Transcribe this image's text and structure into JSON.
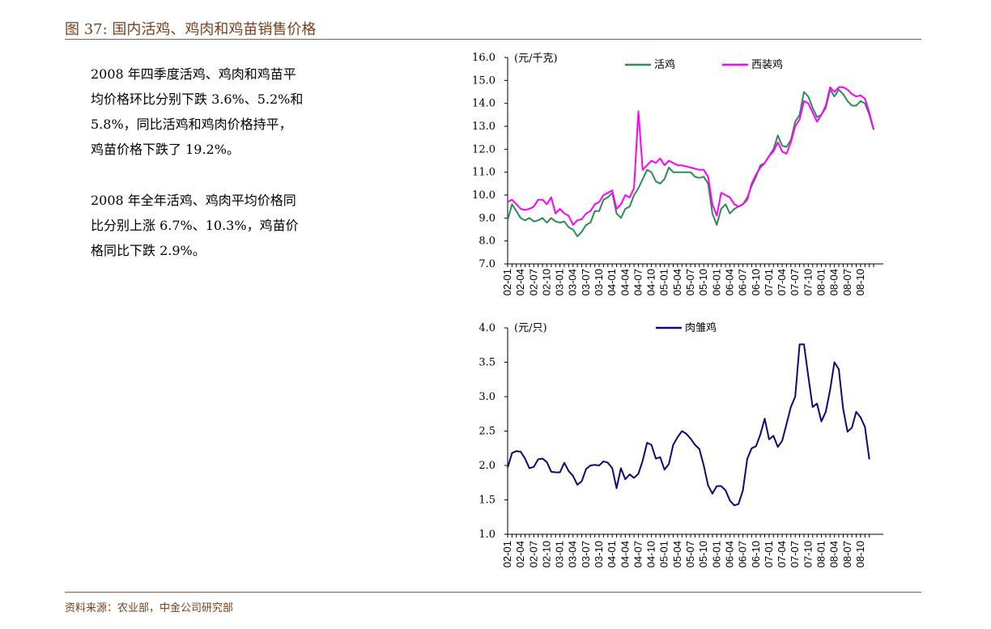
{
  "figure": {
    "title": "图 37: 国内活鸡、鸡肉和鸡苗销售价格",
    "source": "资料来源：农业部，中金公司研究部"
  },
  "text": {
    "paragraph1": [
      "2008 年四季度活鸡、鸡肉和鸡苗平",
      "均价格环比分别下跌 3.6%、5.2%和",
      "5.8%，同比活鸡和鸡肉价格持平，",
      "鸡苗价格下跌了 19.2%。"
    ],
    "paragraph2": [
      "2008 年全年活鸡、鸡肉平均价格同",
      "比分别上涨 6.7%、10.3%，鸡苗价",
      "格同比下跌 2.9%。"
    ]
  },
  "colors": {
    "title": "#7b3f1a",
    "rule": "#9a5a32",
    "live_chicken": "#2e8b57",
    "western_chicken": "#ff00ff",
    "chick": "#0a0a78"
  },
  "chart_data": [
    {
      "type": "line",
      "unit_label": "(元/千克)",
      "ylim": [
        7.0,
        16.0
      ],
      "yticks": [
        "16.0",
        "15.0",
        "14.0",
        "13.0",
        "12.0",
        "11.0",
        "10.0",
        "9.0",
        "8.0",
        "7.0"
      ],
      "x_tick_labels": [
        "02-01",
        "02-04",
        "02-07",
        "02-10",
        "03-01",
        "03-04",
        "03-07",
        "03-10",
        "04-01",
        "04-04",
        "04-07",
        "04-10",
        "05-01",
        "05-04",
        "05-07",
        "05-10",
        "06-01",
        "06-04",
        "06-07",
        "06-10",
        "07-01",
        "07-04",
        "07-07",
        "07-10",
        "08-01",
        "08-04",
        "08-07",
        "08-10"
      ],
      "x_start": "2002-01",
      "legend_position": "top",
      "series": [
        {
          "name": "活鸡",
          "color_key": "live_chicken",
          "values": [
            8.9,
            9.6,
            9.3,
            9.0,
            8.9,
            9.0,
            8.85,
            8.9,
            9.0,
            8.8,
            9.0,
            8.85,
            8.8,
            8.85,
            8.6,
            8.5,
            8.2,
            8.4,
            8.7,
            8.8,
            9.3,
            9.3,
            9.8,
            9.9,
            10.1,
            9.2,
            9.0,
            9.4,
            9.5,
            10.0,
            10.3,
            10.7,
            11.1,
            11.0,
            10.6,
            10.5,
            10.7,
            11.2,
            11.0,
            11.0,
            11.0,
            11.0,
            11.0,
            10.8,
            10.75,
            10.8,
            10.5,
            9.2,
            8.7,
            9.4,
            9.6,
            9.2,
            9.4,
            9.5,
            9.6,
            9.9,
            10.4,
            10.8,
            11.3,
            11.4,
            11.7,
            12.0,
            12.6,
            12.15,
            12.1,
            12.4,
            13.2,
            13.5,
            14.5,
            14.3,
            13.8,
            13.4,
            13.5,
            13.8,
            14.6,
            14.3,
            14.6,
            14.4,
            14.1,
            13.9,
            13.9,
            14.1,
            14.0,
            13.5,
            12.85
          ]
        },
        {
          "name": "西装鸡",
          "color_key": "western_chicken",
          "values": [
            9.7,
            9.8,
            9.6,
            9.4,
            9.35,
            9.4,
            9.5,
            9.8,
            9.8,
            9.6,
            9.9,
            9.2,
            9.4,
            9.2,
            9.1,
            8.7,
            8.9,
            8.95,
            9.2,
            9.3,
            9.6,
            9.7,
            10.0,
            10.1,
            10.2,
            9.4,
            9.6,
            10.0,
            9.9,
            10.3,
            13.65,
            11.1,
            11.3,
            11.5,
            11.4,
            11.6,
            11.3,
            11.5,
            11.4,
            11.3,
            11.3,
            11.25,
            11.2,
            11.15,
            11.1,
            11.1,
            10.8,
            9.6,
            9.1,
            10.1,
            10.0,
            9.9,
            9.6,
            9.5,
            9.6,
            9.8,
            10.5,
            10.9,
            11.2,
            11.4,
            11.7,
            11.9,
            12.3,
            11.9,
            11.8,
            12.3,
            13.0,
            13.3,
            14.1,
            14.0,
            13.6,
            13.2,
            13.5,
            13.9,
            14.7,
            14.5,
            14.7,
            14.7,
            14.6,
            14.4,
            14.3,
            14.35,
            14.2,
            13.6,
            12.85
          ]
        }
      ]
    },
    {
      "type": "line",
      "unit_label": "(元/只)",
      "ylim": [
        1.0,
        4.0
      ],
      "yticks": [
        "4.0",
        "3.5",
        "3.0",
        "2.5",
        "2.0",
        "1.5",
        "1.0"
      ],
      "x_tick_labels": [
        "02-01",
        "02-04",
        "02-07",
        "02-10",
        "03-01",
        "03-04",
        "03-07",
        "03-10",
        "04-01",
        "04-04",
        "04-07",
        "04-10",
        "05-01",
        "05-04",
        "05-07",
        "05-10",
        "06-01",
        "06-04",
        "06-07",
        "06-10",
        "07-01",
        "07-04",
        "07-07",
        "07-10",
        "08-01",
        "08-04",
        "08-07",
        "08-10"
      ],
      "x_start": "2002-01",
      "legend_position": "top",
      "series": [
        {
          "name": "肉雏鸡",
          "color_key": "chick",
          "values": [
            1.97,
            2.18,
            2.21,
            2.2,
            2.1,
            1.96,
            1.98,
            2.09,
            2.1,
            2.05,
            1.91,
            1.9,
            1.9,
            2.04,
            1.92,
            1.85,
            1.72,
            1.77,
            1.95,
            2.0,
            2.01,
            2.0,
            2.06,
            2.04,
            1.96,
            1.67,
            1.96,
            1.8,
            1.87,
            1.82,
            1.88,
            2.07,
            2.33,
            2.3,
            2.1,
            2.12,
            1.94,
            2.02,
            2.3,
            2.41,
            2.5,
            2.46,
            2.39,
            2.3,
            2.24,
            2.0,
            1.71,
            1.59,
            1.7,
            1.7,
            1.64,
            1.49,
            1.42,
            1.44,
            1.64,
            2.1,
            2.25,
            2.28,
            2.45,
            2.68,
            2.38,
            2.43,
            2.27,
            2.36,
            2.6,
            2.85,
            3.0,
            3.76,
            3.76,
            3.3,
            2.85,
            2.9,
            2.64,
            2.78,
            3.1,
            3.5,
            3.4,
            2.82,
            2.49,
            2.55,
            2.78,
            2.7,
            2.56,
            2.09
          ]
        }
      ]
    }
  ]
}
